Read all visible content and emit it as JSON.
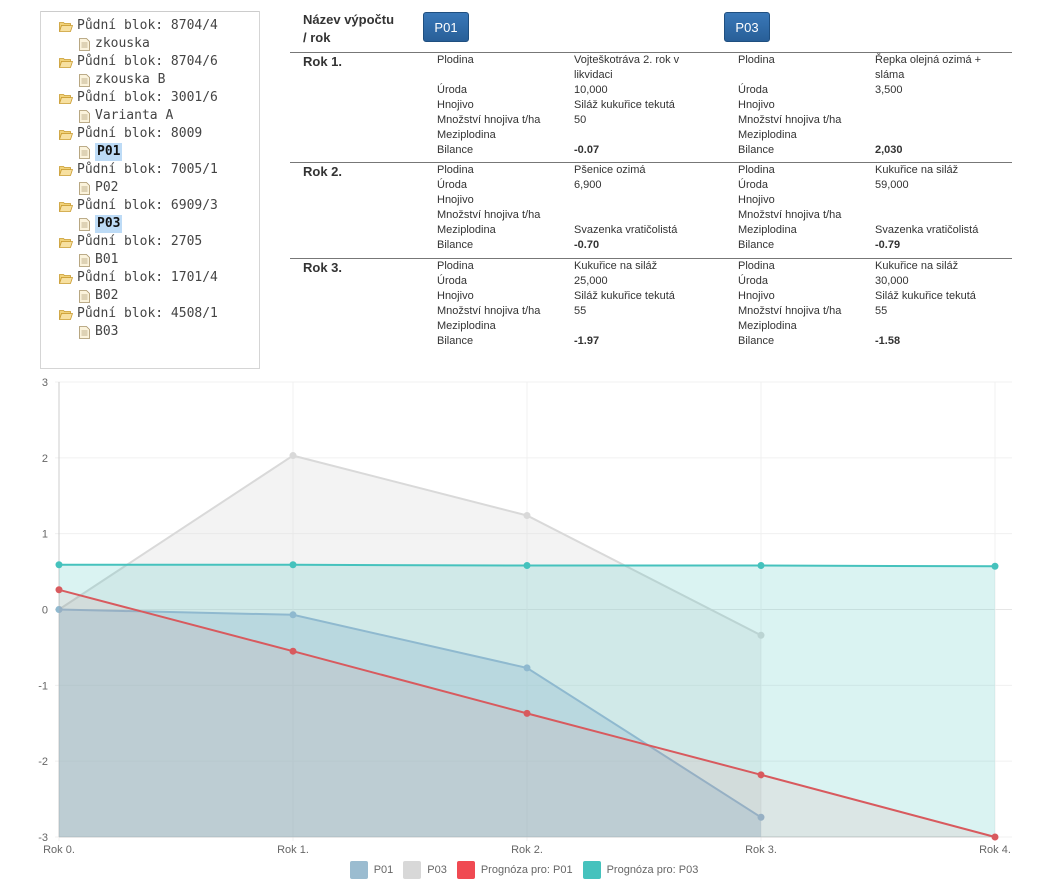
{
  "tree": {
    "blocks": [
      {
        "label": "Půdní blok: 8704/4",
        "leaf": "zkouska",
        "selected": false
      },
      {
        "label": "Půdní blok: 8704/6",
        "leaf": "zkouska B",
        "selected": false
      },
      {
        "label": "Půdní blok: 3001/6",
        "leaf": "Varianta A",
        "selected": false
      },
      {
        "label": "Půdní blok: 8009",
        "leaf": "P01",
        "selected": true
      },
      {
        "label": "Půdní blok: 7005/1",
        "leaf": "P02",
        "selected": false
      },
      {
        "label": "Půdní blok: 6909/3",
        "leaf": "P03",
        "selected": true
      },
      {
        "label": "Půdní blok: 2705",
        "leaf": "B01",
        "selected": false
      },
      {
        "label": "Půdní blok: 1701/4",
        "leaf": "B02",
        "selected": false
      },
      {
        "label": "Půdní blok: 4508/1",
        "leaf": "B03",
        "selected": false
      }
    ]
  },
  "table": {
    "header_title_line1": "Název výpočtu",
    "header_title_line2": "/ rok",
    "columns": [
      "P01",
      "P03"
    ],
    "labels": {
      "plodina": "Plodina",
      "uroda": "Úroda",
      "hnojivo": "Hnojivo",
      "mnozstvi": "Množství hnojiva t/ha",
      "meziplodina": "Meziplodina",
      "bilance": "Bilance"
    },
    "years": [
      {
        "name": "Rok 1.",
        "p01": {
          "plodina_l1": "Vojteškotráva 2. rok v",
          "plodina_l2": "likvidaci",
          "uroda": "10,000",
          "hnojivo": "Siláž kukuřice tekutá",
          "mnozstvi": "50",
          "meziplodina": "",
          "bilance": "-0.07"
        },
        "p03": {
          "plodina_l1": "Řepka olejná ozimá +",
          "plodina_l2": "sláma",
          "uroda": "3,500",
          "hnojivo": "",
          "mnozstvi": "",
          "meziplodina": "",
          "bilance": "2,030"
        }
      },
      {
        "name": "Rok 2.",
        "p01": {
          "plodina_l1": "Pšenice ozimá",
          "plodina_l2": "",
          "uroda": "6,900",
          "hnojivo": "",
          "mnozstvi": "",
          "meziplodina": "Svazenka vratičolistá",
          "bilance": "-0.70"
        },
        "p03": {
          "plodina_l1": "Kukuřice na siláž",
          "plodina_l2": "",
          "uroda": "59,000",
          "hnojivo": "",
          "mnozstvi": "",
          "meziplodina": "Svazenka vratičolistá",
          "bilance": "-0.79"
        }
      },
      {
        "name": "Rok 3.",
        "p01": {
          "plodina_l1": "Kukuřice na siláž",
          "plodina_l2": "",
          "uroda": "25,000",
          "hnojivo": "Siláž kukuřice tekutá",
          "mnozstvi": "55",
          "meziplodina": "",
          "bilance": "-1.97"
        },
        "p03": {
          "plodina_l1": "Kukuřice na siláž",
          "plodina_l2": "",
          "uroda": "30,000",
          "hnojivo": "Siláž kukuřice tekutá",
          "mnozstvi": "55",
          "meziplodina": "",
          "bilance": "-1.58"
        }
      }
    ]
  },
  "icons": {
    "block": "folder-open-icon",
    "leaf": "file-icon"
  },
  "colors": {
    "p01": "#8fb9cf",
    "p03": "#d6d6d6",
    "prog_p01": "#f04a52",
    "prog_p03": "#45c2bd"
  },
  "chart_data": {
    "type": "area",
    "categories": [
      "Rok 0.",
      "Rok 1.",
      "Rok 2.",
      "Rok 3.",
      "Rok 4."
    ],
    "ylim": [
      -3,
      3
    ],
    "yticks": [
      3,
      2,
      1,
      0,
      -1,
      -2,
      -3
    ],
    "grid": true,
    "legend_position": "bottom",
    "series": [
      {
        "name": "P01",
        "values": [
          0,
          -0.07,
          -0.77,
          -2.74,
          null
        ]
      },
      {
        "name": "P03",
        "values": [
          0,
          2.03,
          1.24,
          -0.34,
          null
        ]
      },
      {
        "name": "Prognóza pro: P01",
        "values": [
          0.26,
          -0.55,
          -1.37,
          -2.18,
          -3.0
        ]
      },
      {
        "name": "Prognóza pro: P03",
        "values": [
          0.59,
          0.59,
          0.58,
          0.58,
          0.57
        ]
      }
    ]
  }
}
